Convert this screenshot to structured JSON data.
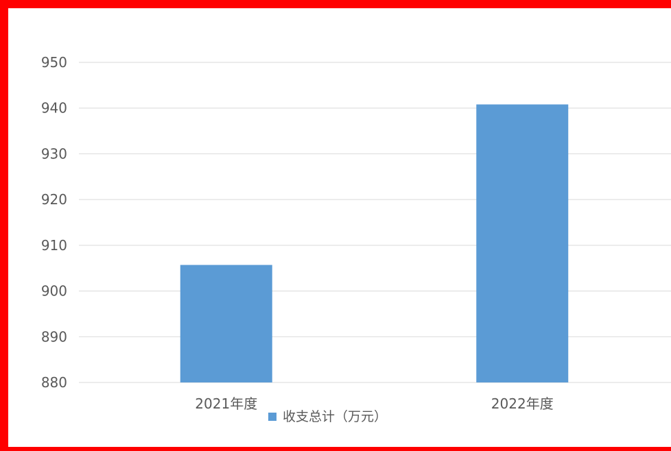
{
  "chart_data": {
    "type": "bar",
    "categories": [
      "2021年度",
      "2022年度"
    ],
    "series": [
      {
        "name": "收支总计（万元）",
        "values": [
          905.7,
          940.8
        ],
        "color": "#5b9bd5"
      }
    ],
    "title": "",
    "xlabel": "",
    "ylabel": "",
    "ylim": [
      880,
      950
    ],
    "yticks": [
      "880",
      "890",
      "900",
      "910",
      "920",
      "930",
      "940",
      "950"
    ],
    "grid": true,
    "legend_position": "bottom",
    "frame_color": "#ff0000",
    "grid_color": "#d9d9d9"
  }
}
